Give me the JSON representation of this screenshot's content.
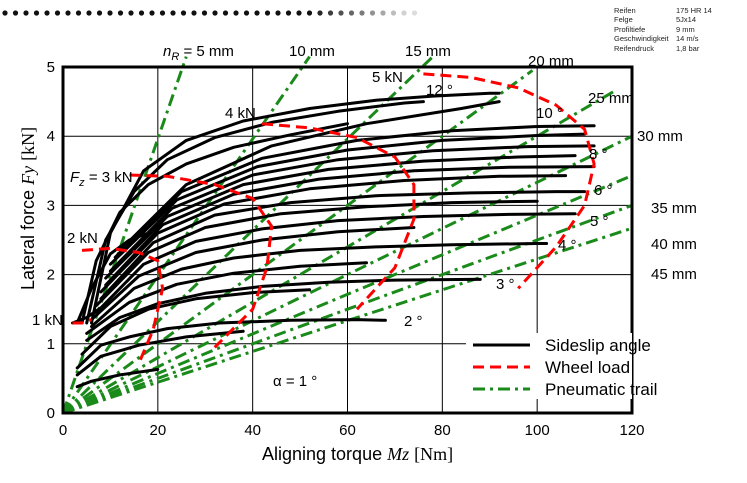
{
  "info_box": [
    {
      "key": "Reifen",
      "value": "175 HR 14"
    },
    {
      "key": "Felge",
      "value": "5Jx14"
    },
    {
      "key": "Profiltiefe",
      "value": "9 mm"
    },
    {
      "key": "Geschwindigkeit",
      "value": "14 m/s"
    },
    {
      "key": "Reifendruck",
      "value": "1,8 bar"
    }
  ],
  "colors": {
    "sideslip": "#000000",
    "wheel_load": "#ff0000",
    "trail": "#1a8a1a",
    "dots": "#111111"
  },
  "chart_data": {
    "type": "line",
    "title": "",
    "xlabel": "Aligning torque",
    "xlabel_symbol": "Mz",
    "xlabel_unit": "[Nm]",
    "ylabel": "Lateral force",
    "ylabel_symbol": "Fy",
    "ylabel_unit": "[kN]",
    "xlim": [
      0,
      120
    ],
    "ylim": [
      0,
      5
    ],
    "xticks": [
      "0",
      "20",
      "40",
      "60",
      "80",
      "100",
      "120"
    ],
    "yticks": [
      "0",
      "1",
      "2",
      "3",
      "4",
      "5"
    ],
    "grid": true,
    "legend": {
      "position": "bottom-right",
      "entries": [
        {
          "label": "Sideslip angle",
          "style": "solid"
        },
        {
          "label": "Wheel load",
          "style": "dashed"
        },
        {
          "label": "Pneumatic trail",
          "style": "dashdot"
        }
      ]
    },
    "sideslip_curves": [
      {
        "label": "α = 1 °",
        "points": [
          [
            3,
            0.38
          ],
          [
            6,
            0.46
          ],
          [
            12,
            0.55
          ],
          [
            20,
            0.63
          ]
        ]
      },
      {
        "label": "",
        "points": [
          [
            3,
            0.55
          ],
          [
            8,
            0.82
          ],
          [
            16,
            0.98
          ],
          [
            26,
            1.1
          ],
          [
            38,
            1.18
          ]
        ]
      },
      {
        "label": "2 °",
        "points": [
          [
            3,
            0.65
          ],
          [
            8,
            0.98
          ],
          [
            14,
            1.1
          ],
          [
            22,
            1.22
          ],
          [
            33,
            1.3
          ],
          [
            48,
            1.34
          ],
          [
            62,
            1.35
          ],
          [
            68,
            1.34
          ]
        ]
      },
      {
        "label": "",
        "points": [
          [
            4,
            0.85
          ],
          [
            10,
            1.25
          ],
          [
            18,
            1.5
          ],
          [
            28,
            1.65
          ],
          [
            40,
            1.74
          ],
          [
            52,
            1.78
          ]
        ]
      },
      {
        "label": "3 °",
        "points": [
          [
            5,
            1.05
          ],
          [
            12,
            1.38
          ],
          [
            20,
            1.58
          ],
          [
            30,
            1.73
          ],
          [
            42,
            1.83
          ],
          [
            56,
            1.89
          ],
          [
            70,
            1.92
          ],
          [
            86,
            1.93
          ],
          [
            88,
            1.93
          ]
        ]
      },
      {
        "label": "",
        "points": [
          [
            5,
            1.15
          ],
          [
            14,
            1.6
          ],
          [
            24,
            1.86
          ],
          [
            36,
            2.02
          ],
          [
            50,
            2.12
          ],
          [
            64,
            2.17
          ]
        ]
      },
      {
        "label": "4 °",
        "points": [
          [
            6,
            1.25
          ],
          [
            15,
            1.8
          ],
          [
            25,
            2.08
          ],
          [
            36,
            2.24
          ],
          [
            50,
            2.35
          ],
          [
            66,
            2.4
          ],
          [
            82,
            2.43
          ],
          [
            100,
            2.45
          ],
          [
            102,
            2.45
          ]
        ]
      },
      {
        "label": "",
        "points": [
          [
            6,
            1.35
          ],
          [
            16,
            1.98
          ],
          [
            28,
            2.32
          ],
          [
            42,
            2.5
          ],
          [
            58,
            2.62
          ],
          [
            74,
            2.68
          ]
        ]
      },
      {
        "label": "5 °",
        "points": [
          [
            7,
            1.45
          ],
          [
            17,
            2.15
          ],
          [
            28,
            2.48
          ],
          [
            42,
            2.66
          ],
          [
            58,
            2.78
          ],
          [
            76,
            2.84
          ],
          [
            94,
            2.87
          ],
          [
            108,
            2.88
          ]
        ]
      },
      {
        "label": "",
        "points": [
          [
            7,
            1.55
          ],
          [
            18,
            2.32
          ],
          [
            30,
            2.68
          ],
          [
            46,
            2.88
          ],
          [
            64,
            2.98
          ],
          [
            82,
            3.04
          ],
          [
            100,
            3.06
          ]
        ]
      },
      {
        "label": "6 °",
        "points": [
          [
            8,
            1.65
          ],
          [
            19,
            2.46
          ],
          [
            32,
            2.86
          ],
          [
            48,
            3.04
          ],
          [
            66,
            3.14
          ],
          [
            86,
            3.18
          ],
          [
            104,
            3.2
          ],
          [
            110,
            3.2
          ]
        ]
      },
      {
        "label": "",
        "points": [
          [
            8,
            1.75
          ],
          [
            20,
            2.6
          ],
          [
            34,
            3.02
          ],
          [
            52,
            3.24
          ],
          [
            72,
            3.36
          ],
          [
            92,
            3.42
          ],
          [
            106,
            3.43
          ]
        ]
      },
      {
        "label": "",
        "points": [
          [
            9,
            1.85
          ],
          [
            21,
            2.72
          ],
          [
            36,
            3.16
          ],
          [
            54,
            3.38
          ],
          [
            74,
            3.5
          ],
          [
            94,
            3.55
          ],
          [
            112,
            3.56
          ]
        ]
      },
      {
        "label": "8 °",
        "points": [
          [
            9,
            1.95
          ],
          [
            22,
            2.84
          ],
          [
            38,
            3.3
          ],
          [
            56,
            3.52
          ],
          [
            76,
            3.64
          ],
          [
            96,
            3.7
          ],
          [
            108,
            3.72
          ]
        ]
      },
      {
        "label": "",
        "points": [
          [
            10,
            2.05
          ],
          [
            23,
            2.96
          ],
          [
            40,
            3.44
          ],
          [
            58,
            3.66
          ],
          [
            78,
            3.79
          ],
          [
            98,
            3.85
          ],
          [
            112,
            3.86
          ]
        ]
      },
      {
        "label": "10 °",
        "points": [
          [
            10,
            2.15
          ],
          [
            24,
            3.08
          ],
          [
            41,
            3.56
          ],
          [
            60,
            3.8
          ],
          [
            80,
            3.94
          ],
          [
            100,
            4.01
          ],
          [
            110,
            4.03
          ]
        ]
      },
      {
        "label": "",
        "points": [
          [
            11,
            2.25
          ],
          [
            25,
            3.2
          ],
          [
            42,
            3.68
          ],
          [
            62,
            3.94
          ],
          [
            82,
            4.08
          ],
          [
            100,
            4.14
          ],
          [
            112,
            4.15
          ]
        ]
      },
      {
        "label": "1 kN",
        "points": [
          [
            2,
            1.3
          ],
          [
            5,
            1.38
          ],
          [
            8,
            1.52
          ]
        ]
      },
      {
        "label": "2 kN",
        "points": [
          [
            3,
            1.3
          ],
          [
            6,
            1.8
          ],
          [
            10,
            2.3
          ],
          [
            14,
            2.5
          ],
          [
            18,
            2.6
          ]
        ]
      },
      {
        "label": "3 kN",
        "points": [
          [
            4,
            1.3
          ],
          [
            7,
            2.2
          ],
          [
            12,
            2.9
          ],
          [
            18,
            3.3
          ],
          [
            26,
            3.6
          ],
          [
            36,
            3.84
          ],
          [
            48,
            4.02
          ],
          [
            60,
            4.18
          ]
        ]
      },
      {
        "label": "4 kN",
        "points": [
          [
            5,
            1.3
          ],
          [
            9,
            2.5
          ],
          [
            15,
            3.2
          ],
          [
            22,
            3.66
          ],
          [
            32,
            3.98
          ],
          [
            44,
            4.2
          ],
          [
            58,
            4.36
          ],
          [
            72,
            4.48
          ],
          [
            76,
            4.5
          ]
        ]
      },
      {
        "label": "5 kN",
        "points": [
          [
            6,
            1.3
          ],
          [
            10,
            2.6
          ],
          [
            17,
            3.5
          ],
          [
            26,
            3.94
          ],
          [
            38,
            4.22
          ],
          [
            52,
            4.4
          ],
          [
            66,
            4.52
          ],
          [
            78,
            4.58
          ],
          [
            90,
            4.62
          ],
          [
            92,
            4.62
          ]
        ]
      },
      {
        "label": "12 °",
        "points": [
          [
            12,
            2.35
          ],
          [
            26,
            3.3
          ],
          [
            44,
            3.86
          ],
          [
            64,
            4.18
          ],
          [
            84,
            4.4
          ],
          [
            92,
            4.5
          ]
        ]
      }
    ],
    "wheel_load_curves": [
      {
        "label": "1 kN",
        "points": [
          [
            2,
            1.3
          ],
          [
            4,
            1.3
          ],
          [
            6,
            1.35
          ]
        ]
      },
      {
        "label": "2 kN",
        "points": [
          [
            4,
            2.35
          ],
          [
            10,
            2.38
          ],
          [
            16,
            2.32
          ],
          [
            20,
            2.2
          ],
          [
            21,
            1.8
          ],
          [
            19,
            1.2
          ],
          [
            16,
            0.72
          ]
        ]
      },
      {
        "label": "3 kN",
        "points": [
          [
            14,
            3.44
          ],
          [
            22,
            3.42
          ],
          [
            32,
            3.3
          ],
          [
            40,
            3.1
          ],
          [
            44,
            2.7
          ],
          [
            43,
            2.1
          ],
          [
            40,
            1.5
          ],
          [
            32,
            0.95
          ]
        ]
      },
      {
        "label": "4 kN",
        "points": [
          [
            42,
            4.18
          ],
          [
            52,
            4.12
          ],
          [
            62,
            3.98
          ],
          [
            70,
            3.7
          ],
          [
            74,
            3.3
          ],
          [
            74,
            2.8
          ],
          [
            70,
            2.1
          ],
          [
            62,
            1.5
          ]
        ]
      },
      {
        "label": "5 kN",
        "points": [
          [
            76,
            4.9
          ],
          [
            86,
            4.85
          ],
          [
            96,
            4.7
          ],
          [
            104,
            4.45
          ],
          [
            110,
            4.1
          ],
          [
            112,
            3.6
          ],
          [
            110,
            3.0
          ],
          [
            104,
            2.4
          ],
          [
            96,
            1.8
          ]
        ]
      }
    ],
    "trail_lines": [
      {
        "label": "nR = 5 mm",
        "x": [
          0,
          26
        ],
        "y": [
          0,
          5.15
        ]
      },
      {
        "label": "10 mm",
        "x": [
          0,
          52
        ],
        "y": [
          0,
          5.15
        ]
      },
      {
        "label": "15 mm",
        "x": [
          0,
          78
        ],
        "y": [
          0,
          5.15
        ]
      },
      {
        "label": "20 mm",
        "x": [
          0,
          99
        ],
        "y": [
          0,
          4.95
        ]
      },
      {
        "label": "25 mm",
        "x": [
          0,
          116
        ],
        "y": [
          0,
          4.64
        ]
      },
      {
        "label": "30 mm",
        "x": [
          0,
          120
        ],
        "y": [
          0,
          4.0
        ]
      },
      {
        "label": "35 mm",
        "x": [
          0,
          120
        ],
        "y": [
          0,
          3.43
        ]
      },
      {
        "label": "40 mm",
        "x": [
          0,
          120
        ],
        "y": [
          0,
          3.0
        ]
      },
      {
        "label": "45 mm",
        "x": [
          0,
          120
        ],
        "y": [
          0,
          2.67
        ]
      }
    ],
    "annotations": {
      "nr_prefix": "n",
      "nr_sub": "R",
      "nr_rest": " = 5 mm",
      "trail_10": "10 mm",
      "trail_15": "15 mm",
      "trail_20": "20 mm",
      "trail_25": "25 mm",
      "trail_30": "30 mm",
      "trail_35": "35 mm",
      "trail_40": "40 mm",
      "trail_45": "45 mm",
      "fz_prefix": "F",
      "fz_sub": "z",
      "fz_rest": " = 3 kN",
      "load_1": "1 kN",
      "load_2": "2 kN",
      "load_4": "4 kN",
      "load_5": "5 kN",
      "alpha_1": "α = 1 °",
      "alpha_2": "2 °",
      "alpha_3": "3 °",
      "alpha_4": "4 °",
      "alpha_5": "5 °",
      "alpha_6": "6 °",
      "alpha_8": "8 °",
      "alpha_10": "10 °",
      "alpha_12": "12 °"
    }
  }
}
